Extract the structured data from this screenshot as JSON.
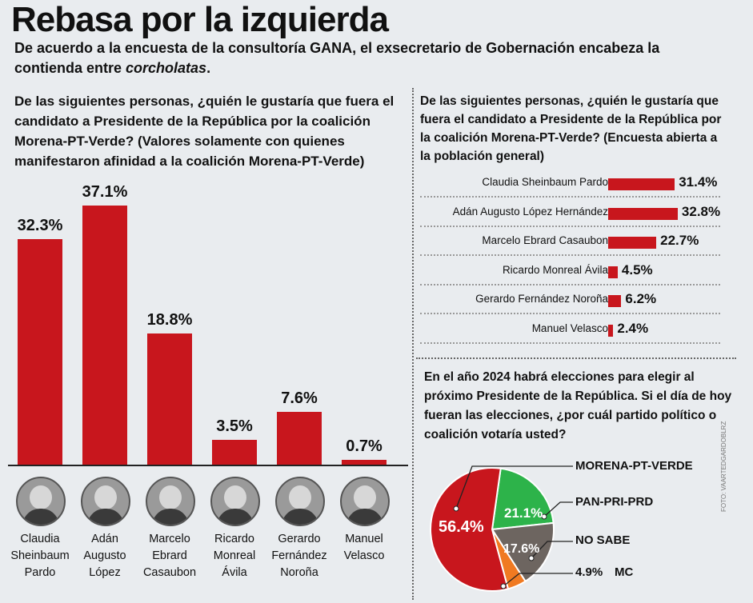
{
  "header": {
    "title": "Rebasa por la izquierda",
    "subtitle_part1": "De acuerdo a la encuesta de la consultoría GANA, el exsecretario de Gobernación encabeza la contienda entre ",
    "subtitle_italic": "corcholatas",
    "subtitle_end": "."
  },
  "colors": {
    "bar": "#c8161d",
    "pie_red": "#c8161d",
    "pie_green": "#2db34a",
    "pie_gray": "#6d6560",
    "pie_orange": "#f07a22"
  },
  "credit": "FOTO: VAARTEDGARDOBLRZ",
  "chart_data": [
    {
      "type": "bar",
      "title": "De las siguientes personas, ¿quién le gustaría que fuera el candidato a Presidente de la República por la coalición Morena-PT-Verde? (Valores solamente con quienes manifestaron afinidad a la coalición Morena-PT-Verde)",
      "categories": [
        [
          "Claudia",
          "Sheinbaum",
          "Pardo"
        ],
        [
          "Adán",
          "Augusto",
          "López"
        ],
        [
          "Marcelo",
          "Ebrard",
          "Casaubon"
        ],
        [
          "Ricardo",
          "Monreal",
          "Ávila"
        ],
        [
          "Gerardo",
          "Fernández",
          "Noroña"
        ],
        [
          "Manuel",
          "Velasco"
        ]
      ],
      "values": [
        32.3,
        37.1,
        18.8,
        3.5,
        7.6,
        0.7
      ],
      "labels": [
        "32.3%",
        "37.1%",
        "18.8%",
        "3.5%",
        "7.6%",
        "0.7%"
      ],
      "ylim": [
        0,
        40
      ]
    },
    {
      "type": "bar",
      "orientation": "horizontal",
      "title": "De las siguientes personas, ¿quién le gustaría que fuera el candidato a Presidente de la República por la coalición Morena-PT-Verde? (Encuesta abierta a la población general)",
      "categories": [
        "Claudia Sheinbaum Pardo",
        "Adán Augusto López Hernández",
        "Marcelo Ebrard Casaubon",
        "Ricardo Monreal Ávila",
        "Gerardo Fernández Noroña",
        "Manuel Velasco"
      ],
      "values": [
        31.4,
        32.8,
        22.7,
        4.5,
        6.2,
        2.4
      ],
      "labels": [
        "31.4%",
        "32.8%",
        "22.7%",
        "4.5%",
        "6.2%",
        "2.4%"
      ],
      "xlim": [
        0,
        40
      ]
    },
    {
      "type": "pie",
      "title": "En el año 2024 habrá elecciones para elegir al próximo Presidente de la República. Si el día de hoy fueran las elecciones, ¿por cuál partido político o coalición votaría usted?",
      "slices": [
        {
          "name": "MORENA-PT-VERDE",
          "value": 56.4,
          "label": "56.4%"
        },
        {
          "name": "PAN-PRI-PRD",
          "value": 21.1,
          "label": "21.1%"
        },
        {
          "name": "NO SABE",
          "value": 17.6,
          "label": "17.6%"
        },
        {
          "name": "MC",
          "value": 4.9,
          "label": "4.9%"
        }
      ]
    }
  ]
}
